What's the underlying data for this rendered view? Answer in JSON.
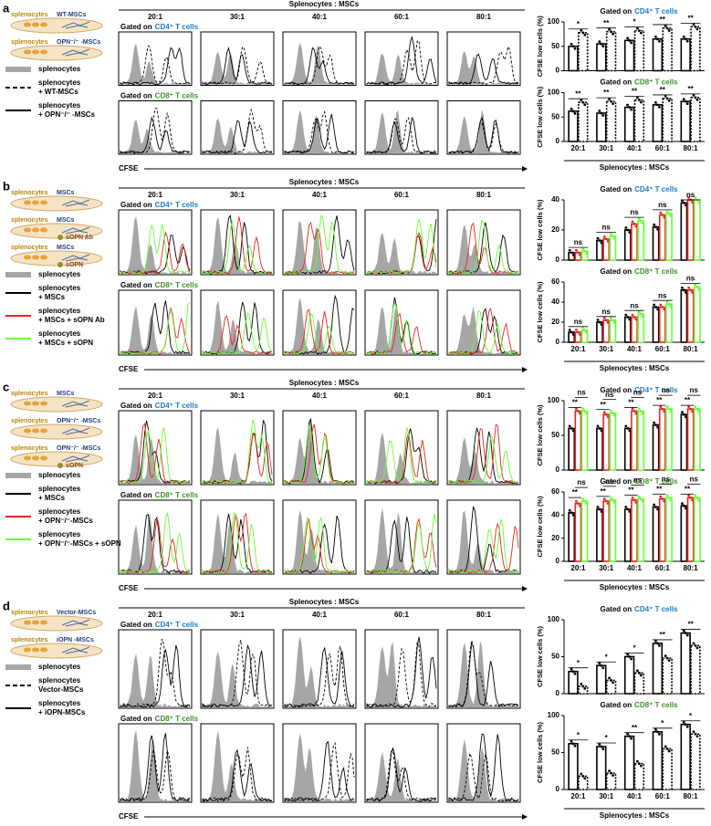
{
  "hist_header": "Splenocytes : MSCs",
  "ratios": [
    "20:1",
    "30:1",
    "40:1",
    "60:1",
    "80:1"
  ],
  "gates": [
    {
      "prefix": "Gated on",
      "cells": "CD4⁺ T cells"
    },
    {
      "prefix": "Gated on",
      "cells": "CD8⁺ T cells"
    }
  ],
  "hist_x_label": "CFSE",
  "y_label": "CFSE low cells (%)",
  "bar_x_label": "Splenocytes : MSCs",
  "panels": [
    {
      "label": "a",
      "schematic": [
        {
          "cells": "splenocytes",
          "msc": "WT-MSCs"
        },
        {
          "cells": "splenocytes",
          "msc": "OPN⁻/⁻ -MSCs"
        }
      ],
      "legend": [
        {
          "lines": [
            "splenocytes"
          ],
          "style": "fill",
          "color": "#a6a6a6"
        },
        {
          "lines": [
            "splenocytes",
            "+ WT-MSCs"
          ],
          "style": "dash",
          "color": "#000000"
        },
        {
          "lines": [
            "splenocytes",
            "+ OPN⁻/⁻ -MSCs"
          ],
          "style": "solid",
          "color": "#000000"
        }
      ],
      "bars": [
        {
          "ylim": [
            0,
            100
          ],
          "yticks": [
            0,
            50,
            100
          ],
          "series": [
            {
              "values": [
                50,
                55,
                62,
                65,
                65
              ],
              "color": "#000000",
              "dashed": false
            },
            {
              "values": [
                78,
                80,
                82,
                87,
                90
              ],
              "color": "#000000",
              "dashed": true
            }
          ],
          "sig": [
            [
              "*"
            ],
            [
              "**"
            ],
            [
              "*"
            ],
            [
              "**"
            ],
            [
              "**"
            ]
          ]
        },
        {
          "ylim": [
            0,
            100
          ],
          "yticks": [
            0,
            50,
            100
          ],
          "series": [
            {
              "values": [
                62,
                58,
                70,
                75,
                82
              ],
              "color": "#000000",
              "dashed": false
            },
            {
              "values": [
                80,
                82,
                85,
                88,
                90
              ],
              "color": "#000000",
              "dashed": true
            }
          ],
          "sig": [
            [
              "**"
            ],
            [
              "**"
            ],
            [
              "**"
            ],
            [
              "**"
            ],
            [
              "**"
            ]
          ]
        }
      ]
    },
    {
      "label": "b",
      "schematic": [
        {
          "cells": "splenocytes",
          "msc": "MSCs"
        },
        {
          "cells": "splenocytes",
          "msc": "MSCs",
          "extra": "sOPN Ab"
        },
        {
          "cells": "splenocytes",
          "msc": "MSCs",
          "extra": "sOPN"
        }
      ],
      "legend": [
        {
          "lines": [
            "splenocytes"
          ],
          "style": "fill",
          "color": "#a6a6a6"
        },
        {
          "lines": [
            "splenocytes",
            "+ MSCs"
          ],
          "style": "solid",
          "color": "#000000"
        },
        {
          "lines": [
            "splenocytes",
            "+ MSCs + sOPN Ab"
          ],
          "style": "solid",
          "color": "#e8251f"
        },
        {
          "lines": [
            "splenocytes",
            "+ MSCs + sOPN"
          ],
          "style": "solid",
          "color": "#66ff33"
        }
      ],
      "bars": [
        {
          "ylim": [
            0,
            40
          ],
          "yticks": [
            0,
            20,
            40
          ],
          "series": [
            {
              "values": [
                5,
                13,
                20,
                22,
                38
              ],
              "color": "#000000",
              "dashed": false
            },
            {
              "values": [
                5,
                14,
                24,
                30,
                40
              ],
              "color": "#e8251f",
              "dashed": false
            },
            {
              "values": [
                6,
                16,
                26,
                31,
                40
              ],
              "color": "#66ff33",
              "dashed": false
            }
          ],
          "sig": [
            [
              "ns"
            ],
            [
              "ns"
            ],
            [
              "ns"
            ],
            [
              "ns"
            ],
            [
              "ns"
            ]
          ]
        },
        {
          "ylim": [
            0,
            60
          ],
          "yticks": [
            0,
            20,
            40,
            60
          ],
          "series": [
            {
              "values": [
                10,
                20,
                25,
                35,
                52
              ],
              "color": "#000000",
              "dashed": false
            },
            {
              "values": [
                10,
                22,
                25,
                35,
                52
              ],
              "color": "#e8251f",
              "dashed": false
            },
            {
              "values": [
                12,
                22,
                28,
                38,
                55
              ],
              "color": "#66ff33",
              "dashed": false
            }
          ],
          "sig": [
            [
              "ns"
            ],
            [
              "ns"
            ],
            [
              "ns"
            ],
            [
              "ns"
            ],
            [
              "ns"
            ]
          ]
        }
      ]
    },
    {
      "label": "c",
      "schematic": [
        {
          "cells": "splenocytes",
          "msc": "MSCs"
        },
        {
          "cells": "splenocytes",
          "msc": "OPN⁻/⁻ -MSCs"
        },
        {
          "cells": "splenocytes",
          "msc": "OPN⁻/⁻ -MSCs",
          "extra": "sOPN"
        }
      ],
      "legend": [
        {
          "lines": [
            "splenocytes"
          ],
          "style": "fill",
          "color": "#a6a6a6"
        },
        {
          "lines": [
            "splenocytes",
            "+ MSCs"
          ],
          "style": "solid",
          "color": "#000000"
        },
        {
          "lines": [
            "splenocytes",
            "+ OPN⁻/⁻-MSCs"
          ],
          "style": "solid",
          "color": "#e8251f"
        },
        {
          "lines": [
            "splenocytes",
            "+ OPN⁻/⁻-MSCs + sOPN"
          ],
          "style": "solid",
          "color": "#66ff33"
        }
      ],
      "bars": [
        {
          "ylim": [
            0,
            100
          ],
          "yticks": [
            0,
            50,
            100
          ],
          "series": [
            {
              "values": [
                60,
                60,
                60,
                65,
                80
              ],
              "color": "#000000",
              "dashed": false
            },
            {
              "values": [
                85,
                80,
                85,
                88,
                88
              ],
              "color": "#e8251f",
              "dashed": false
            },
            {
              "values": [
                85,
                82,
                85,
                88,
                88
              ],
              "color": "#66ff33",
              "dashed": false
            }
          ],
          "sig": [
            [
              "**",
              "ns"
            ],
            [
              "**",
              "ns"
            ],
            [
              "**",
              "ns"
            ],
            [
              "**",
              "ns"
            ],
            [
              "**",
              "ns"
            ]
          ]
        },
        {
          "ylim": [
            0,
            60
          ],
          "yticks": [
            0,
            20,
            40,
            60
          ],
          "series": [
            {
              "values": [
                42,
                45,
                45,
                47,
                48
              ],
              "color": "#000000",
              "dashed": false
            },
            {
              "values": [
                50,
                52,
                53,
                54,
                55
              ],
              "color": "#e8251f",
              "dashed": false
            },
            {
              "values": [
                52,
                53,
                54,
                55,
                55
              ],
              "color": "#66ff33",
              "dashed": false
            }
          ],
          "sig": [
            [
              "**",
              "ns"
            ],
            [
              "**",
              "ns"
            ],
            [
              "**",
              "ns"
            ],
            [
              "**",
              "ns"
            ],
            [
              "**",
              "ns"
            ]
          ]
        }
      ]
    },
    {
      "label": "d",
      "schematic": [
        {
          "cells": "splenocytes",
          "msc": "Vector-MSCs"
        },
        {
          "cells": "splenocytes",
          "msc": "iOPN -MSCs"
        }
      ],
      "legend": [
        {
          "lines": [
            "splenocytes"
          ],
          "style": "fill",
          "color": "#a6a6a6"
        },
        {
          "lines": [
            "splenocytes",
            "Vector-MSCs"
          ],
          "style": "dash",
          "color": "#000000"
        },
        {
          "lines": [
            "splenocytes",
            "+ iOPN-MSCs"
          ],
          "style": "solid",
          "color": "#000000"
        }
      ],
      "bars": [
        {
          "ylim": [
            0,
            100
          ],
          "yticks": [
            0,
            50,
            100
          ],
          "series": [
            {
              "values": [
                30,
                38,
                50,
                68,
                82
              ],
              "color": "#000000",
              "dashed": false
            },
            {
              "values": [
                10,
                18,
                28,
                48,
                65
              ],
              "color": "#000000",
              "dashed": true
            }
          ],
          "sig": [
            [
              "*"
            ],
            [
              "*"
            ],
            [
              "*"
            ],
            [
              "**"
            ],
            [
              "**"
            ]
          ]
        },
        {
          "ylim": [
            0,
            100
          ],
          "yticks": [
            0,
            50,
            100
          ],
          "series": [
            {
              "values": [
                62,
                58,
                72,
                78,
                88
              ],
              "color": "#000000",
              "dashed": false
            },
            {
              "values": [
                18,
                22,
                35,
                55,
                75
              ],
              "color": "#000000",
              "dashed": true
            }
          ],
          "sig": [
            [
              "*"
            ],
            [
              "*"
            ],
            [
              "**"
            ],
            [
              "*"
            ],
            [
              "*"
            ]
          ]
        }
      ]
    }
  ]
}
